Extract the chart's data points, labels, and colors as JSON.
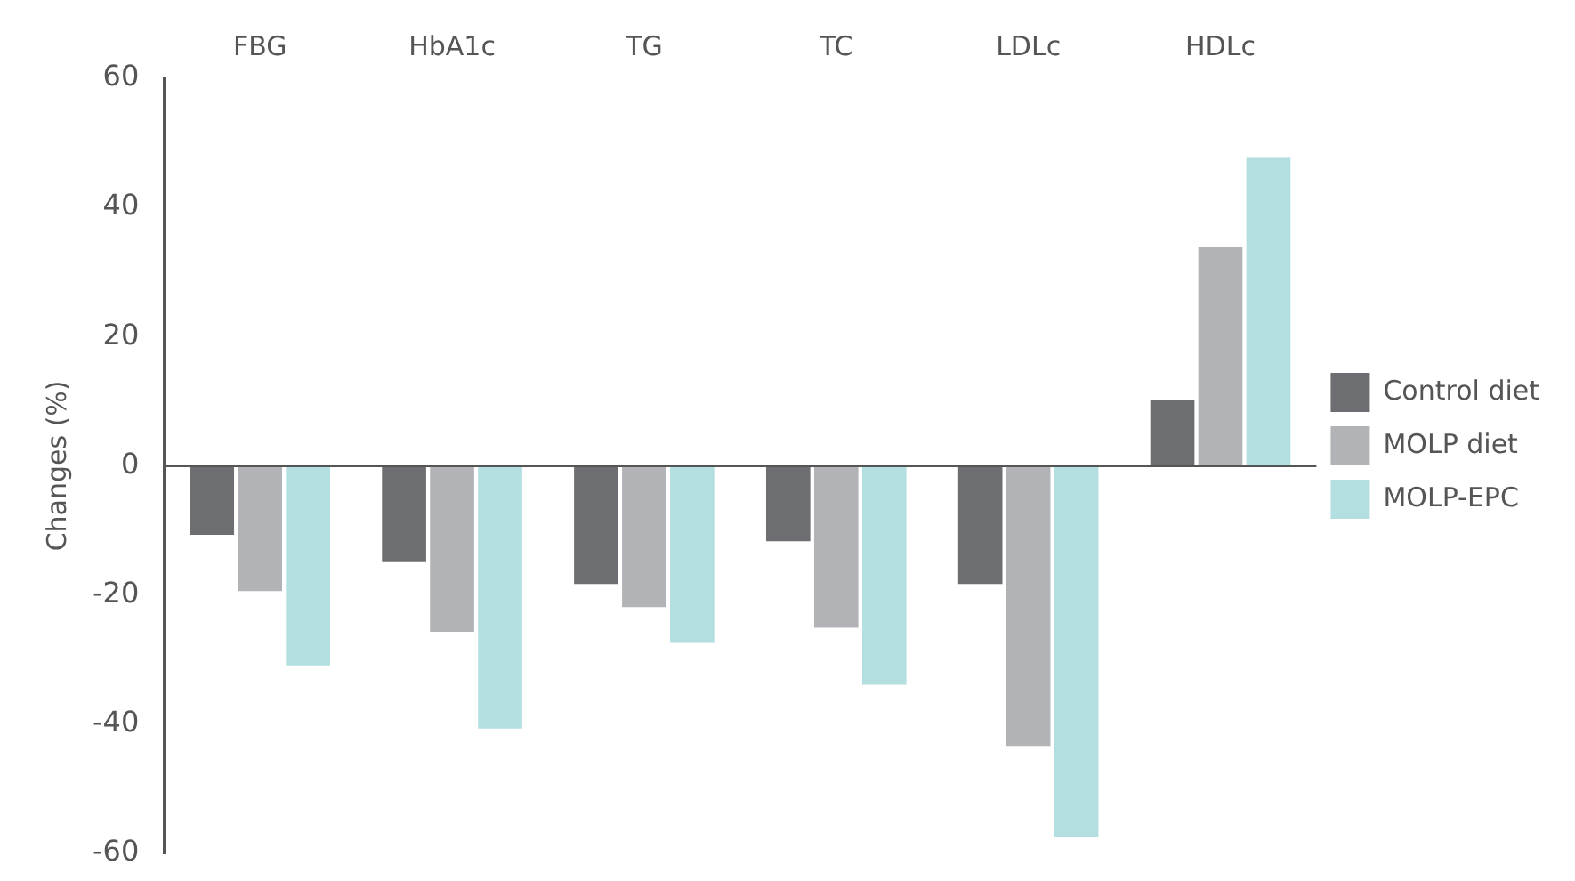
{
  "chart_data": {
    "type": "bar",
    "ylabel": "Changes (%)",
    "categories": [
      "FBG",
      "HbA1c",
      "TG",
      "TC",
      "LDLc",
      "HDLc"
    ],
    "series": [
      {
        "name": "Control diet",
        "color": "#6d6e71",
        "values": [
          -10.7,
          -14.8,
          -18.3,
          -11.7,
          -18.3,
          10.1
        ]
      },
      {
        "name": "MOLP diet",
        "color": "#b1b3b6",
        "values": [
          -19.4,
          -25.7,
          -21.9,
          -25.1,
          -43.4,
          33.9
        ]
      },
      {
        "name": "MOLP-EPC",
        "color": "#b3dfe0",
        "values": [
          -30.9,
          -40.7,
          -27.3,
          -33.9,
          -57.4,
          47.8
        ]
      }
    ],
    "ylim": [
      -60,
      60
    ],
    "yticks": [
      -60,
      -40,
      -20,
      0,
      20,
      40,
      60
    ],
    "grid": false,
    "ref_lines": [
      {
        "axis": "y",
        "value": 0,
        "color": "#555555"
      }
    ],
    "legend": "right"
  }
}
